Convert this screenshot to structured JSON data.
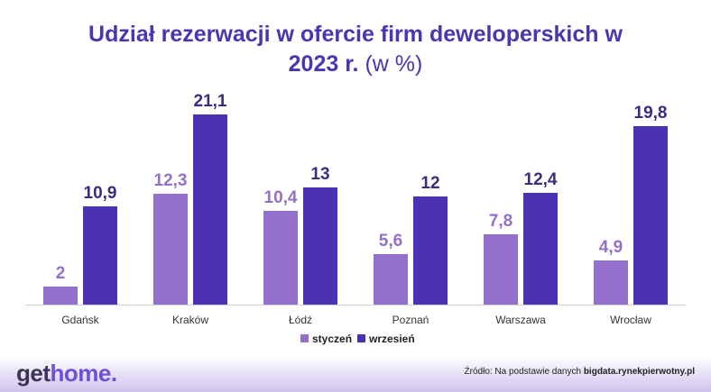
{
  "title_main": "Udział rezerwacji w ofercie firm deweloperskich w",
  "title_year": "2023 r.",
  "title_unit": "(w %)",
  "colors": {
    "styczen": "#9370c9",
    "wrzesien": "#4a32b3",
    "label_styczen": "#9370c9",
    "label_wrzesien": "#3a2d80",
    "title": "#4b36b0"
  },
  "chart_data": {
    "type": "bar",
    "categories": [
      "Gdańsk",
      "Kraków",
      "Łódź",
      "Poznań",
      "Warszawa",
      "Wrocław"
    ],
    "series": [
      {
        "name": "styczeń",
        "values": [
          2,
          12.3,
          10.4,
          5.6,
          7.8,
          4.9
        ],
        "labels": [
          "2",
          "12,3",
          "10,4",
          "5,6",
          "7,8",
          "4,9"
        ]
      },
      {
        "name": "wrzesień",
        "values": [
          10.9,
          21.1,
          13,
          12,
          12.4,
          19.8
        ],
        "labels": [
          "10,9",
          "21,1",
          "13",
          "12",
          "12,4",
          "19,8"
        ]
      }
    ],
    "ylim": [
      0,
      21.1
    ],
    "legend_position": "bottom-center",
    "grid": false
  },
  "footer": {
    "logo_get": "get",
    "logo_home": "home.",
    "source_prefix": "Źródło: Na podstawie danych ",
    "source_domain": "bigdata.rynekpierwotny.pl"
  }
}
